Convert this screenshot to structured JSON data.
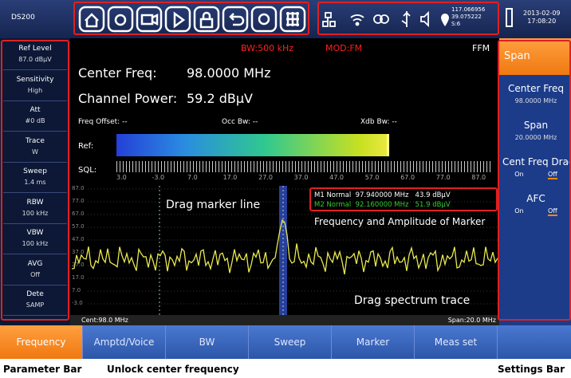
{
  "header": {
    "device": "DS200",
    "longitude": "117.066956",
    "latitude": "39.075222",
    "satellites": "S:6",
    "date": "2013-02-09",
    "time": "17:08:20"
  },
  "parameters": [
    {
      "label": "Ref Level",
      "value": "87.0 dBμV"
    },
    {
      "label": "Sensitivity",
      "value": "High"
    },
    {
      "label": "Att",
      "value": "#0 dB"
    },
    {
      "label": "Trace",
      "value": "W"
    },
    {
      "label": "Sweep",
      "value": "1.4 ms"
    },
    {
      "label": "RBW",
      "value": "100 kHz"
    },
    {
      "label": "VBW",
      "value": "100 kHz"
    },
    {
      "label": "AVG",
      "value": "Off"
    },
    {
      "label": "Dete",
      "value": "SAMP"
    }
  ],
  "measurement": {
    "bw": "BW:500 kHz",
    "mod": "MOD:FM",
    "mode": "FFM",
    "center_label": "Center Freq:",
    "center_value": "98.0000 MHz",
    "power_label": "Channel Power:",
    "power_value": "59.2 dBμV",
    "freq_offset": "Freq Offset: --",
    "occ_bw": "Occ Bw: --",
    "xdb_bw": "Xdb Bw: --",
    "ref_label": "Ref:",
    "sql_label": "SQL:",
    "sql_scale": [
      "3.0",
      "-3.0",
      "7.0",
      "17.0",
      "27.0",
      "37.0",
      "47.0",
      "57.0",
      "67.0",
      "77.0",
      "87.0"
    ]
  },
  "spectrum": {
    "y_labels": [
      "87.0",
      "77.0",
      "67.0",
      "57.0",
      "47.0",
      "37.0",
      "27.0",
      "17.0",
      "7.0",
      "-3.0"
    ],
    "markers": [
      "M1 Normal  97.940000 MHz   43.9 dBμV",
      "M2 Normal  92.160000 MHz   51.9 dBμV"
    ],
    "cent": "Cent:98.0 MHz",
    "span": "Span:20.0 MHz"
  },
  "annotations": {
    "drag_marker": "Drag marker line",
    "marker_info": "Frequency and Amplitude of Marker",
    "drag_trace": "Drag spectrum trace",
    "parameter_bar": "Parameter Bar",
    "unlock": "Unlock center frequency",
    "settings_bar": "Settings Bar"
  },
  "tabs": [
    "Frequency",
    "Amptd/Voice",
    "BW",
    "Sweep",
    "Marker",
    "Meas set"
  ],
  "settings": {
    "title": "Span",
    "items": [
      {
        "label": "Center Freq",
        "value": "98.0000 MHz"
      },
      {
        "label": "Span",
        "value": "20.0000 MHz"
      },
      {
        "label": "Cent Freq Drag",
        "on": "On",
        "off": "Off"
      },
      {
        "label": "AFC",
        "on": "On",
        "off": "Off"
      }
    ]
  }
}
